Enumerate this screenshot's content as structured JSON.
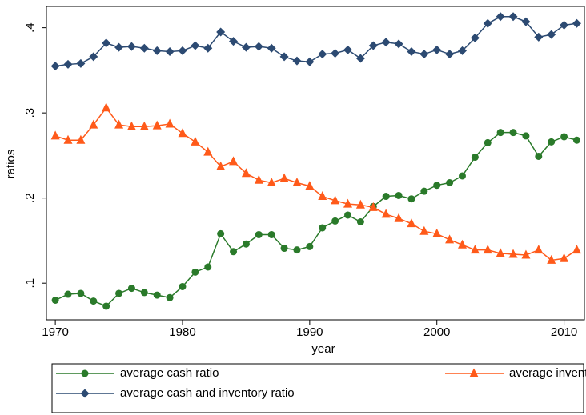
{
  "chart_data": {
    "type": "line",
    "xlabel": "year",
    "ylabel": "ratios",
    "x": [
      1970,
      1971,
      1972,
      1973,
      1974,
      1975,
      1976,
      1977,
      1978,
      1979,
      1980,
      1981,
      1982,
      1983,
      1984,
      1985,
      1986,
      1987,
      1988,
      1989,
      1990,
      1991,
      1992,
      1993,
      1994,
      1995,
      1996,
      1997,
      1998,
      1999,
      2000,
      2001,
      2002,
      2003,
      2004,
      2005,
      2006,
      2007,
      2008,
      2009,
      2010,
      2011
    ],
    "xlim": [
      1969.3,
      2011.6
    ],
    "xticks": [
      1970,
      1980,
      1990,
      2000,
      2010
    ],
    "ylim": [
      0.057,
      0.425
    ],
    "yticks": [
      {
        "value": 0.1,
        "label": ".1"
      },
      {
        "value": 0.2,
        "label": ".2"
      },
      {
        "value": 0.3,
        "label": ".3"
      },
      {
        "value": 0.4,
        "label": ".4"
      }
    ],
    "legend": "bottom",
    "series": [
      {
        "name": "average cash ratio",
        "color": "#2a7a2a",
        "marker": "circle",
        "values": [
          0.08,
          0.087,
          0.088,
          0.079,
          0.073,
          0.088,
          0.094,
          0.089,
          0.086,
          0.083,
          0.096,
          0.113,
          0.119,
          0.158,
          0.137,
          0.146,
          0.157,
          0.157,
          0.141,
          0.139,
          0.143,
          0.165,
          0.173,
          0.18,
          0.172,
          0.19,
          0.202,
          0.203,
          0.199,
          0.208,
          0.215,
          0.218,
          0.226,
          0.248,
          0.265,
          0.277,
          0.277,
          0.273,
          0.249,
          0.266,
          0.272,
          0.268
        ]
      },
      {
        "name": "average inventory ratio",
        "color": "#ff5a1a",
        "marker": "triangle",
        "values": [
          0.273,
          0.268,
          0.268,
          0.286,
          0.306,
          0.286,
          0.284,
          0.284,
          0.285,
          0.287,
          0.276,
          0.266,
          0.254,
          0.237,
          0.243,
          0.229,
          0.221,
          0.218,
          0.223,
          0.218,
          0.214,
          0.202,
          0.197,
          0.193,
          0.192,
          0.189,
          0.181,
          0.176,
          0.17,
          0.161,
          0.158,
          0.151,
          0.145,
          0.139,
          0.139,
          0.135,
          0.134,
          0.133,
          0.139,
          0.127,
          0.129,
          0.139
        ]
      },
      {
        "name": "average cash and inventory ratio",
        "color": "#2c4a72",
        "marker": "diamond",
        "values": [
          0.355,
          0.357,
          0.358,
          0.366,
          0.382,
          0.377,
          0.378,
          0.376,
          0.373,
          0.372,
          0.373,
          0.379,
          0.376,
          0.395,
          0.384,
          0.377,
          0.378,
          0.376,
          0.366,
          0.361,
          0.36,
          0.369,
          0.37,
          0.374,
          0.364,
          0.379,
          0.383,
          0.381,
          0.372,
          0.369,
          0.374,
          0.369,
          0.373,
          0.388,
          0.405,
          0.413,
          0.413,
          0.407,
          0.389,
          0.392,
          0.403,
          0.405
        ]
      }
    ]
  }
}
